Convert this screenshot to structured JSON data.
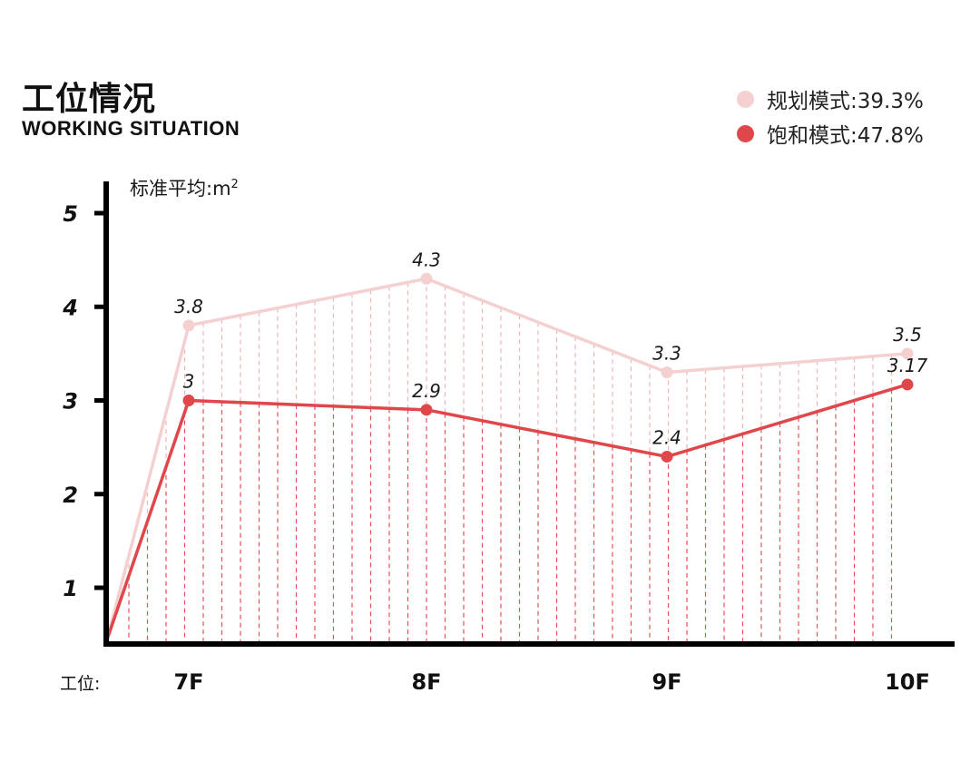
{
  "header": {
    "title_cn": "工位情况",
    "title_en": "WORKING SITUATION"
  },
  "legend": [
    {
      "label": "规划模式:39.3%",
      "color": "#f4d0d1"
    },
    {
      "label": "饱和模式:47.8%",
      "color": "#e0474a"
    }
  ],
  "axis": {
    "unit_label": "标准平均:m",
    "unit_sup": "2",
    "x_prefix": "工位:"
  },
  "chart_data": {
    "type": "line",
    "title": "工位情况 WORKING SITUATION",
    "xlabel": "工位:",
    "ylabel": "标准平均:m²",
    "categories": [
      "7F",
      "8F",
      "9F",
      "10F"
    ],
    "series": [
      {
        "name": "规划模式:39.3%",
        "values": [
          3.8,
          4.3,
          3.3,
          3.5
        ],
        "color": "#f4d0d1"
      },
      {
        "name": "饱和模式:47.8%",
        "values": [
          3,
          2.9,
          2.4,
          3.17
        ],
        "color": "#e0474a"
      }
    ],
    "y_ticks": [
      1,
      2,
      3,
      4,
      5
    ],
    "ylim": [
      0.4,
      5.3
    ],
    "grid": false,
    "legend_position": "top-right",
    "annotations": "vertical dashed hatch lines fill area under each series"
  }
}
